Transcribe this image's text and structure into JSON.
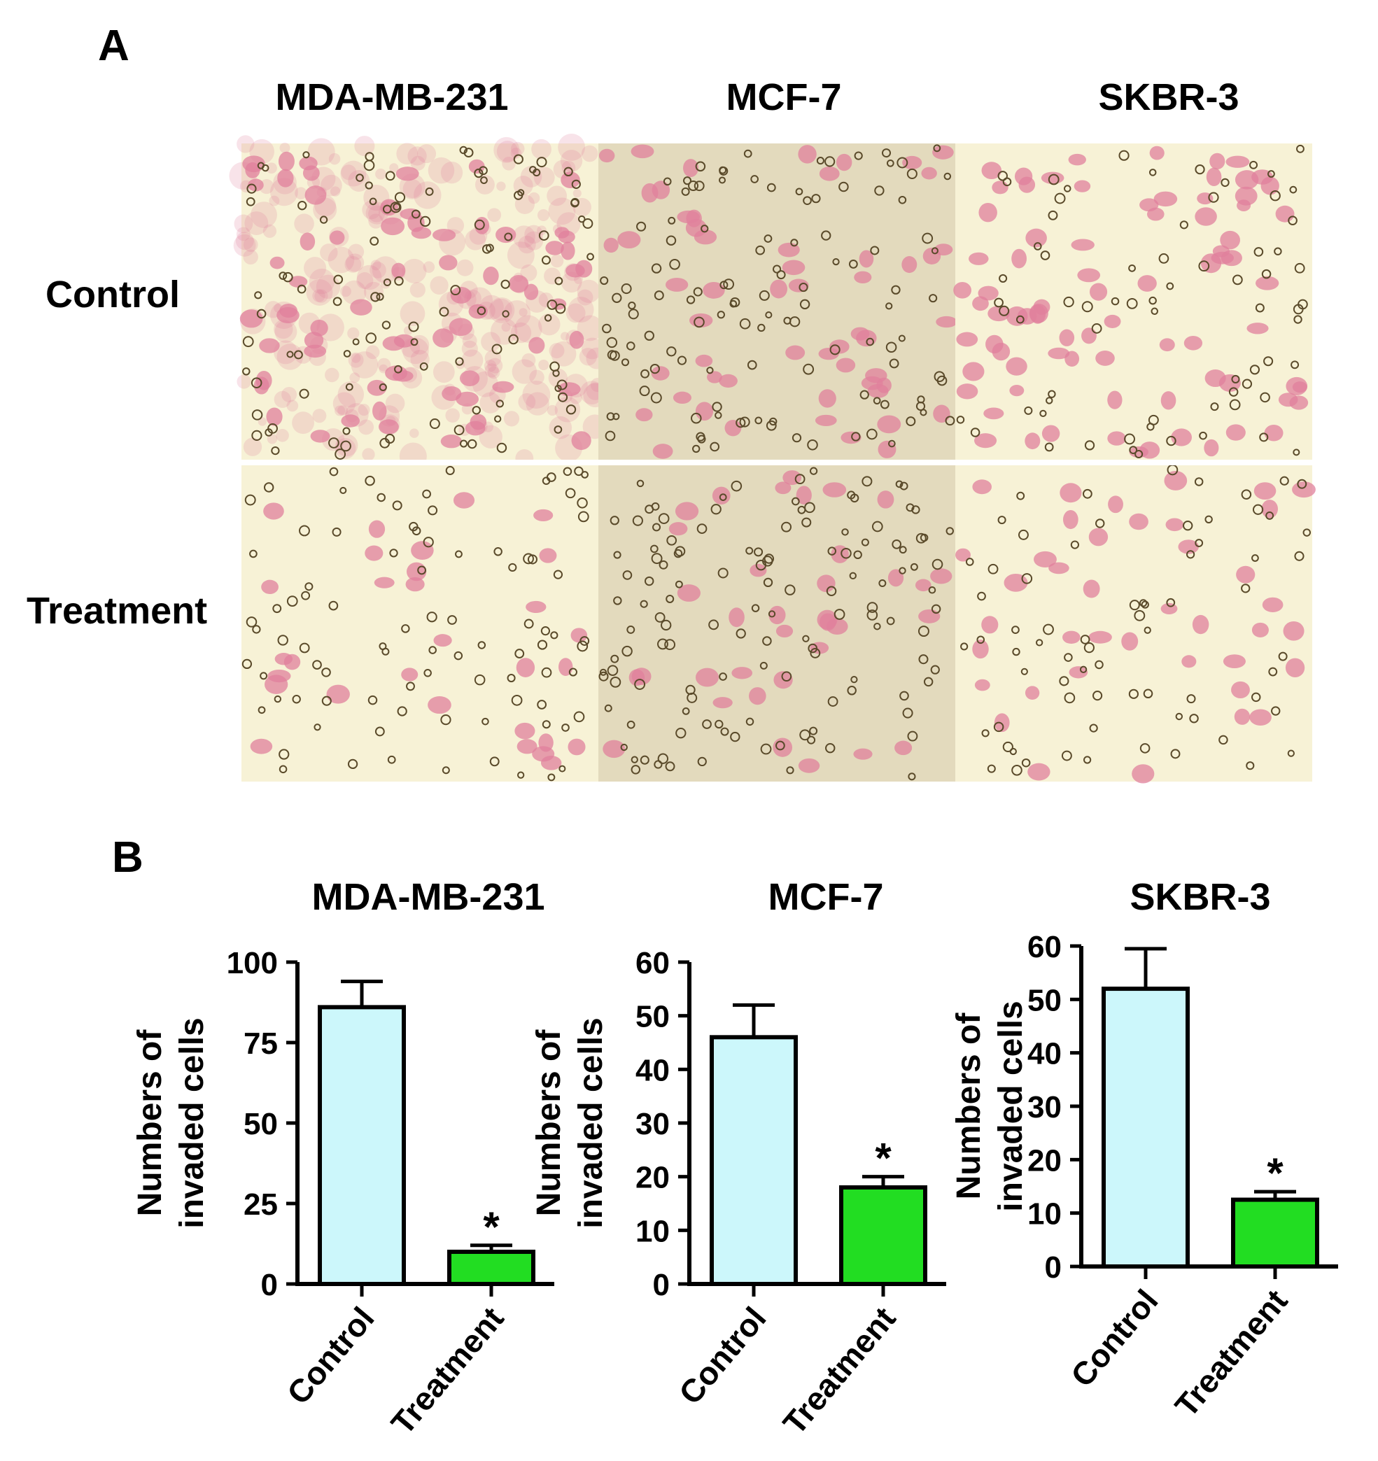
{
  "panel_a": {
    "label": "A",
    "columns": [
      "MDA-MB-231",
      "MCF-7",
      "SKBR-3"
    ],
    "rows": [
      "Control",
      "Treatment"
    ]
  },
  "panel_b": {
    "label": "B"
  },
  "colors": {
    "control_bar": "#ccf7fb",
    "treatment_bar": "#22dd22",
    "stain_pink": "#e0809c",
    "field_light": "#f7f2d6",
    "field_tan": "#e3dabd"
  },
  "chart_data": [
    {
      "type": "bar",
      "title": "MDA-MB-231",
      "ylabel": "Numbers of invaded cells",
      "categories": [
        "Control",
        "Treatment"
      ],
      "values": [
        86,
        10
      ],
      "errors": [
        8,
        2
      ],
      "significance": [
        "",
        "*"
      ],
      "ylim": [
        0,
        100
      ],
      "yticks": [
        0,
        25,
        50,
        75,
        100
      ]
    },
    {
      "type": "bar",
      "title": "MCF-7",
      "ylabel": "Numbers of invaded cells",
      "categories": [
        "Control",
        "Treatment"
      ],
      "values": [
        46,
        18
      ],
      "errors": [
        6,
        2
      ],
      "significance": [
        "",
        "*"
      ],
      "ylim": [
        0,
        60
      ],
      "yticks": [
        0,
        10,
        20,
        30,
        40,
        50,
        60
      ]
    },
    {
      "type": "bar",
      "title": "SKBR-3",
      "ylabel": "Numbers of invaded cells",
      "categories": [
        "Control",
        "Treatment"
      ],
      "values": [
        52,
        12.5
      ],
      "errors": [
        7.5,
        1.5
      ],
      "significance": [
        "",
        "*"
      ],
      "ylim": [
        0,
        60
      ],
      "yticks": [
        0,
        10,
        20,
        30,
        40,
        50,
        60
      ]
    }
  ]
}
